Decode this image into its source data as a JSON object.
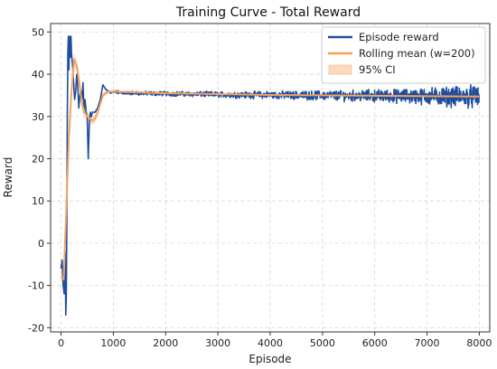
{
  "chart_data": {
    "type": "line",
    "title": "Training Curve - Total Reward",
    "xlabel": "Episode",
    "ylabel": "Reward",
    "xlim": [
      -200,
      8200
    ],
    "ylim": [
      -21,
      52
    ],
    "xticks": [
      0,
      1000,
      2000,
      3000,
      4000,
      5000,
      6000,
      7000,
      8000
    ],
    "yticks": [
      -20,
      -10,
      0,
      10,
      20,
      30,
      40,
      50
    ],
    "grid": true,
    "legend_position": "top-right",
    "colors": {
      "episode": "#1f4e9c",
      "rolling": "#f4a261",
      "ci": "#fbd9bd"
    },
    "series": [
      {
        "name": "Episode reward",
        "x": [
          0,
          20,
          40,
          60,
          70,
          80,
          90,
          100,
          110,
          120,
          130,
          140,
          150,
          160,
          170,
          180,
          190,
          200,
          220,
          240,
          260,
          280,
          300,
          320,
          340,
          360,
          380,
          400,
          420,
          440,
          460,
          480,
          500,
          520,
          540,
          560,
          580,
          600,
          650,
          700,
          750,
          800,
          850,
          900,
          950,
          1000,
          1100,
          1200,
          1500,
          2000,
          2500,
          3000,
          3500,
          4000,
          4500,
          5000,
          5500,
          6000,
          6500,
          7000,
          7500,
          8000
        ],
        "values": [
          -6,
          -4,
          -10,
          -12,
          -8,
          -2,
          -17,
          -13,
          5,
          30,
          45,
          49,
          41,
          47,
          49,
          44,
          49,
          45,
          42,
          38,
          34,
          36,
          40,
          37,
          32,
          35,
          36,
          34,
          38,
          31,
          34,
          31,
          30,
          20,
          28,
          31,
          30,
          31,
          31,
          32,
          34,
          37.5,
          36.5,
          36,
          35.5,
          35.8,
          35.7,
          35.6,
          35.5,
          35.4,
          35.3,
          35.2,
          35.1,
          35.1,
          35.0,
          35.0,
          34.9,
          34.9,
          34.8,
          34.8,
          34.7,
          34.7
        ],
        "noise_band": [
          [
            1000,
            0.3
          ],
          [
            3000,
            0.5
          ],
          [
            5000,
            0.8
          ],
          [
            6500,
            1.2
          ],
          [
            8000,
            2.0
          ]
        ]
      },
      {
        "name": "Rolling mean (w=200)",
        "x": [
          0,
          50,
          100,
          150,
          200,
          250,
          300,
          350,
          400,
          450,
          500,
          550,
          600,
          650,
          700,
          750,
          800,
          850,
          900,
          1000,
          1200,
          2000,
          3000,
          4000,
          5000,
          6000,
          7000,
          8000
        ],
        "values": [
          -8,
          -8.5,
          8,
          25,
          36,
          43.5,
          42,
          38,
          33,
          31,
          30,
          29.5,
          29,
          29.5,
          31,
          33,
          35,
          35.5,
          35.8,
          35.9,
          35.8,
          35.5,
          35.3,
          35.1,
          35.0,
          34.9,
          34.8,
          34.7
        ]
      },
      {
        "name": "95% CI",
        "x": [
          0,
          50,
          100,
          150,
          200,
          250,
          300,
          350,
          400,
          450,
          500,
          550,
          600,
          650,
          700,
          750,
          800,
          850,
          900,
          1000,
          1200,
          2000,
          3000,
          4000,
          5000,
          6000,
          7000,
          8000
        ],
        "lower": [
          -9,
          -9.5,
          6,
          23,
          34.5,
          42,
          40.5,
          36.5,
          31.5,
          29.8,
          29,
          28.5,
          28,
          28.5,
          30,
          32,
          34.3,
          35,
          35.4,
          35.6,
          35.6,
          35.3,
          35.1,
          34.9,
          34.8,
          34.7,
          34.6,
          34.5
        ],
        "upper": [
          -7,
          -7.5,
          10,
          27,
          37.5,
          45,
          43.5,
          39.5,
          34.5,
          32.2,
          31,
          30.5,
          30,
          30.5,
          32,
          34,
          35.7,
          36,
          36.2,
          36.2,
          36.0,
          35.7,
          35.5,
          35.3,
          35.2,
          35.1,
          35.0,
          34.9
        ]
      }
    ]
  }
}
